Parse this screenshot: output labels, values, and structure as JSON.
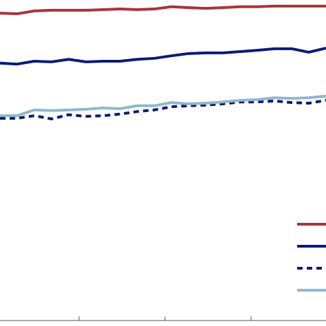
{
  "chart_data": {
    "type": "line",
    "categories": [
      null,
      null,
      null,
      null,
      null,
      null,
      null,
      null,
      null,
      null,
      null,
      null,
      null,
      null,
      null,
      null,
      null,
      null,
      null,
      null
    ],
    "ylim": [
      0,
      100
    ],
    "legend": "lower right",
    "series": [
      {
        "color": "#a8343a",
        "dashed": false,
        "values": [
          95.9,
          95.7,
          96.6,
          96.8,
          96.8,
          96.8,
          97.0,
          97.2,
          97.0,
          97.2,
          97.9,
          97.6,
          97.4,
          97.6,
          97.9,
          97.9,
          98.1,
          98.1,
          98.1,
          98.1
        ]
      },
      {
        "color": "#0b1a7a",
        "dashed": false,
        "values": [
          80.3,
          80.0,
          80.9,
          80.7,
          81.5,
          80.7,
          80.9,
          80.9,
          81.5,
          81.8,
          82.6,
          83.3,
          83.5,
          83.5,
          83.9,
          84.3,
          84.8,
          84.8,
          83.7,
          85.0
        ]
      },
      {
        "color": "#0b1a7a",
        "dashed": true,
        "values": [
          63.1,
          63.1,
          63.9,
          62.9,
          64.2,
          63.7,
          63.9,
          64.4,
          65.2,
          65.7,
          66.7,
          67.0,
          67.2,
          67.6,
          68.2,
          68.2,
          68.5,
          68.0,
          67.8,
          68.7
        ]
      },
      {
        "color": "#8fb8cc",
        "dashed": false,
        "values": [
          63.9,
          63.9,
          65.7,
          65.5,
          65.7,
          65.9,
          66.3,
          66.1,
          67.0,
          67.0,
          68.0,
          67.6,
          67.8,
          68.2,
          68.7,
          68.9,
          69.5,
          69.3,
          69.5,
          70.0
        ]
      }
    ]
  }
}
